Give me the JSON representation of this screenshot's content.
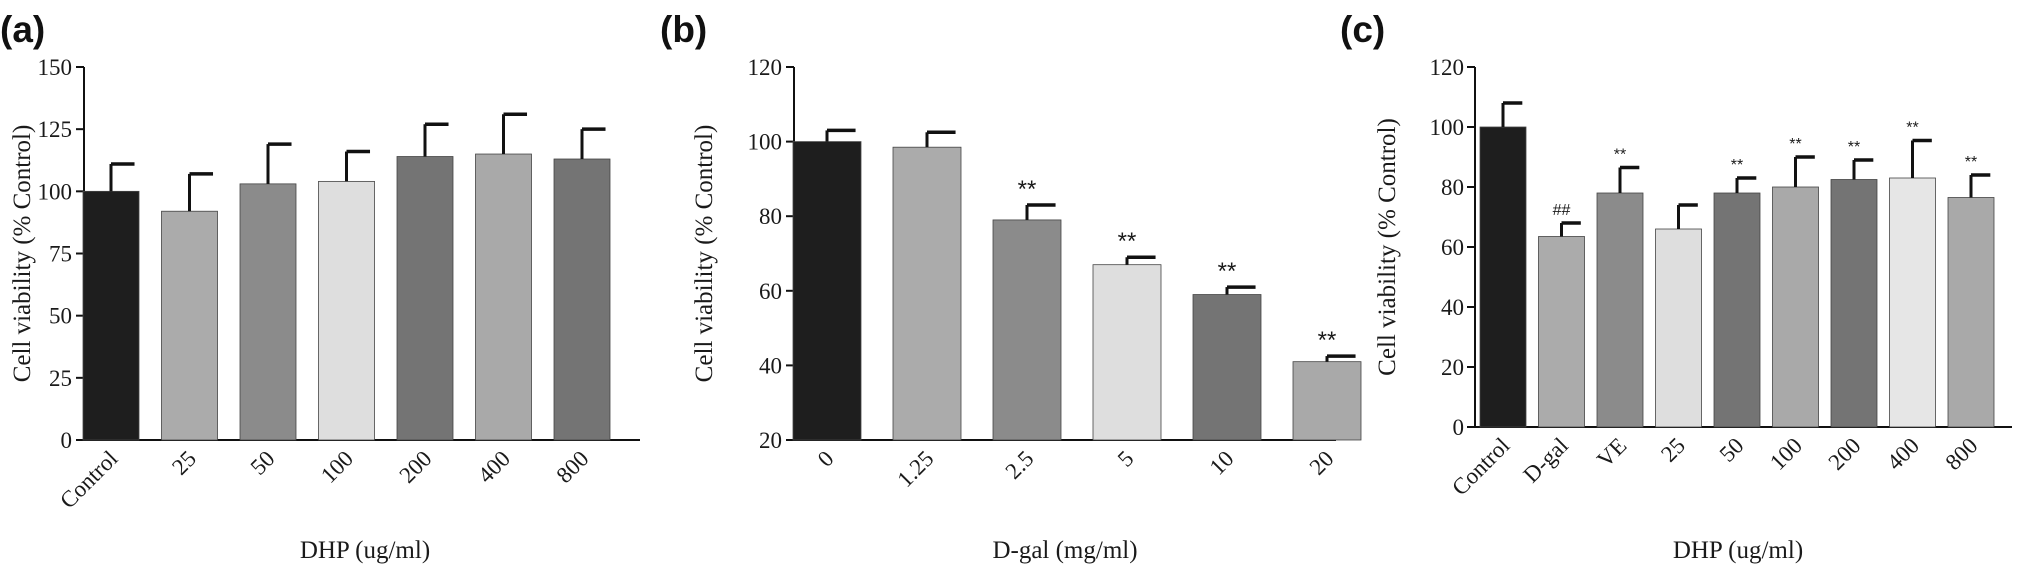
{
  "figure": {
    "panels": [
      "(a)",
      "(b)",
      "(c)"
    ]
  },
  "chart_data": [
    {
      "type": "bar",
      "panel": "(a)",
      "categories": [
        "Control",
        "25",
        "50",
        "100",
        "200",
        "400",
        "800"
      ],
      "values": [
        100,
        92,
        103,
        104,
        114,
        115,
        113
      ],
      "errors": [
        11,
        15,
        16,
        12,
        13,
        16,
        12
      ],
      "colors": [
        "#1e1e1e",
        "#ababab",
        "#8b8b8b",
        "#dedede",
        "#747474",
        "#a9a9a9",
        "#747474"
      ],
      "significance": [
        "",
        "",
        "",
        "",
        "",
        "",
        ""
      ],
      "xlabel": "DHP (ug/ml)",
      "ylabel": "Cell viability (% Control)",
      "ylim": [
        0,
        150
      ],
      "yticks": [
        0,
        25,
        50,
        75,
        100,
        125,
        150
      ],
      "xtick_rotation": 45,
      "grid": false
    },
    {
      "type": "bar",
      "panel": "(b)",
      "categories": [
        "0",
        "1.25",
        "2.5",
        "5",
        "10",
        "20"
      ],
      "values": [
        100,
        98.5,
        79,
        67,
        59,
        41
      ],
      "errors": [
        3,
        4,
        4,
        2,
        2,
        1.5
      ],
      "colors": [
        "#1e1e1e",
        "#ababab",
        "#8b8b8b",
        "#dedede",
        "#747474",
        "#a9a9a9"
      ],
      "significance": [
        "",
        "",
        "**",
        "**",
        "**",
        "**"
      ],
      "xlabel": "D-gal (mg/ml)",
      "ylabel": "Cell viability (% Control)",
      "ylim": [
        20,
        120
      ],
      "yticks": [
        20,
        40,
        60,
        80,
        100,
        120
      ],
      "xtick_rotation": 45,
      "grid": false
    },
    {
      "type": "bar",
      "panel": "(c)",
      "categories": [
        "Control",
        "D-gal",
        "VE",
        "25",
        "50",
        "100",
        "200",
        "400",
        "800"
      ],
      "values": [
        100,
        63.5,
        78,
        66,
        78,
        80,
        82.5,
        83,
        76.5
      ],
      "errors": [
        8,
        4.5,
        8.5,
        8,
        5,
        10,
        6.5,
        12.5,
        7.5
      ],
      "colors": [
        "#1e1e1e",
        "#ababab",
        "#8b8b8b",
        "#dedede",
        "#747474",
        "#a9a9a9",
        "#747474",
        "#e6e6e6",
        "#a9a9a9"
      ],
      "significance": [
        "",
        "##",
        "**",
        "",
        "**",
        "**",
        "**",
        "**",
        "**"
      ],
      "xlabel": "DHP (ug/ml)",
      "ylabel": "Cell viability (% Control)",
      "ylim": [
        0,
        120
      ],
      "yticks": [
        0,
        20,
        40,
        60,
        80,
        100,
        120
      ],
      "xtick_rotation": 45,
      "grid": false
    }
  ]
}
